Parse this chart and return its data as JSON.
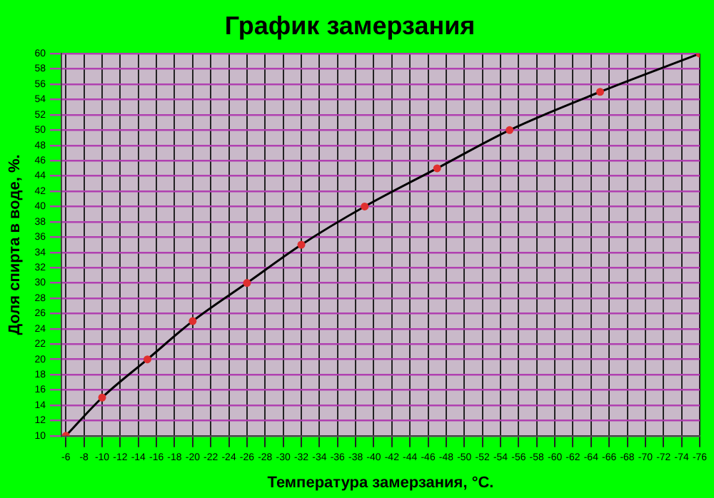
{
  "chart_data": {
    "type": "line",
    "title": "График замерзания",
    "xlabel": "Температура замерзания, °С.",
    "ylabel": "Доля спирта в воде, %.",
    "x": [
      -6,
      -10,
      -15,
      -20,
      -26,
      -32,
      -39,
      -47,
      -55,
      -65,
      -76
    ],
    "series": [
      {
        "color": "#000000",
        "colors": [
          "#e03030",
          "#e03030",
          "#e03030",
          "#e03030",
          "#e03030",
          "#e03030",
          "#e03030",
          "#e03030",
          "#e03030",
          "#e03030",
          "#e03030"
        ],
        "values": [
          10,
          15,
          20,
          25,
          30,
          35,
          40,
          45,
          50,
          55,
          60
        ]
      }
    ],
    "xlim": [
      -5.5,
      -76
    ],
    "xticks": [
      -6,
      -8,
      -10,
      -12,
      -14,
      -16,
      -18,
      -20,
      -22,
      -24,
      -26,
      -28,
      -30,
      -32,
      -34,
      -36,
      -38,
      -40,
      -42,
      -44,
      -46,
      -48,
      -50,
      -52,
      -54,
      -56,
      -58,
      -60,
      -62,
      -64,
      -66,
      -68,
      -70,
      -72,
      -74,
      -76
    ],
    "ylim": [
      10,
      60
    ],
    "yticks": [
      10,
      12,
      14,
      16,
      18,
      20,
      22,
      24,
      26,
      28,
      30,
      32,
      34,
      36,
      38,
      40,
      42,
      44,
      46,
      48,
      50,
      52,
      54,
      56,
      58,
      60
    ],
    "grid": true,
    "legend": false,
    "marker": "circle",
    "line_style": "solid"
  }
}
